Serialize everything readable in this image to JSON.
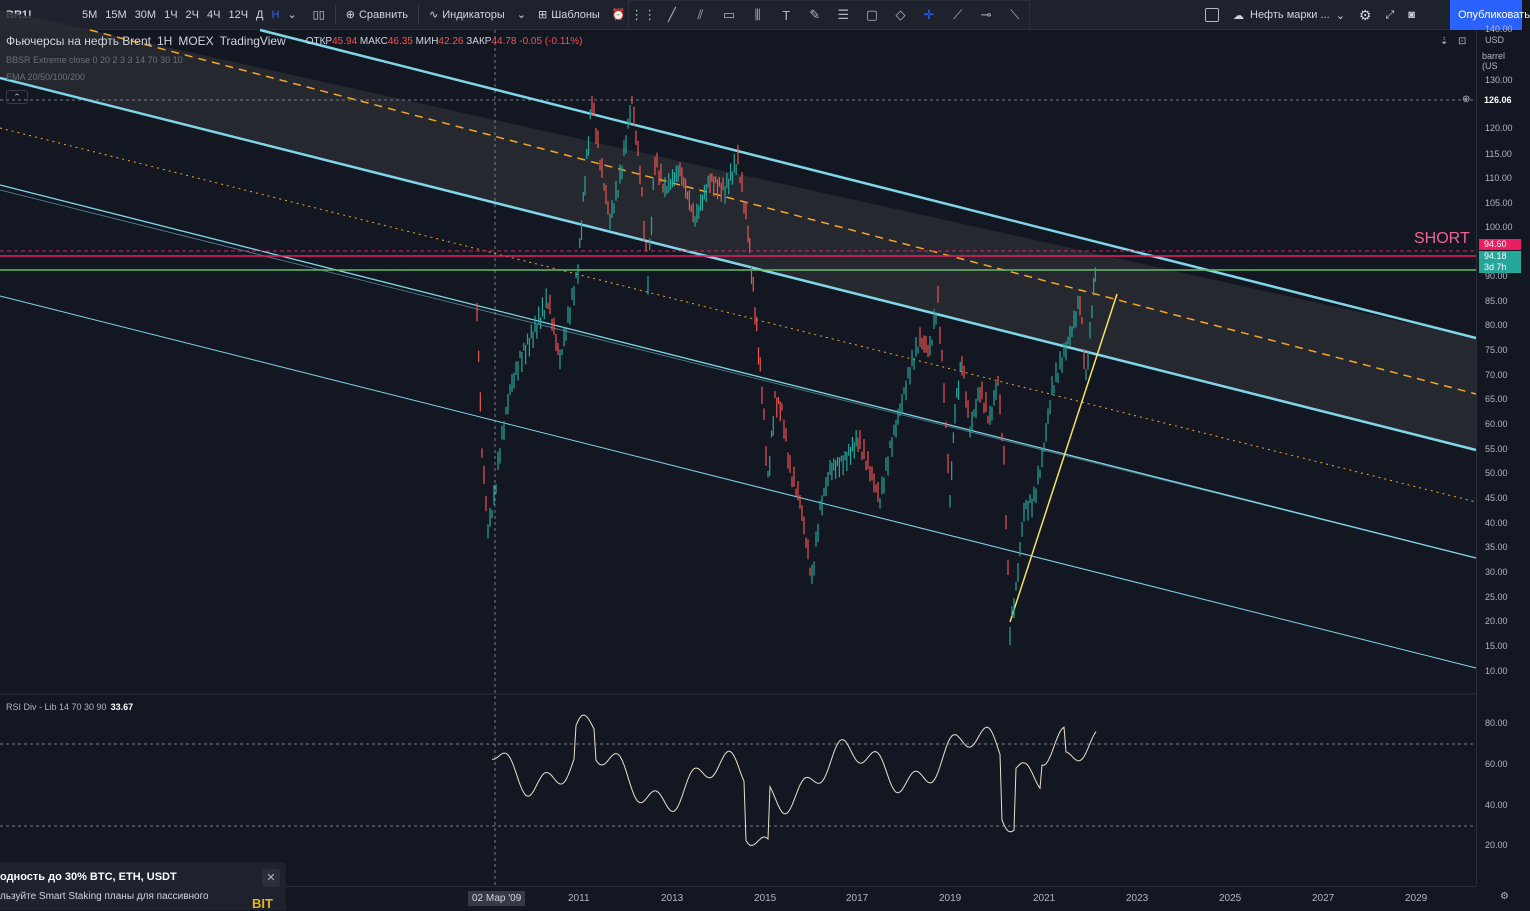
{
  "toolbar": {
    "symbol": "BR1!",
    "timeframes": [
      "5М",
      "15М",
      "30М",
      "1Ч",
      "2Ч",
      "4Ч",
      "12Ч",
      "Д",
      "Н"
    ],
    "active_timeframe": "Н",
    "compare_label": "Сравнить",
    "indicators_label": "Индикаторы",
    "templates_label": "Шаблоны",
    "alerts_label": "Оп",
    "layout_name": "Нефть марки ...",
    "publish_label": "Опубликовать"
  },
  "legend": {
    "title": "Фьючерсы на нефть Brent",
    "interval": "1Н",
    "exchange": "MOEX",
    "source": "TradingView",
    "open_label": "ОТКР",
    "open_value": "45.94",
    "high_label": "МАКС",
    "high_value": "46.35",
    "low_label": "МИН",
    "low_value": "42.26",
    "close_label": "ЗАКР",
    "close_value": "44.78",
    "change": "-0.05 (-0.11%)",
    "indicator1": "BBSR Extreme close 0 20 2 3 3 14 70 30 10",
    "indicator2": "EMA 20/50/100/200"
  },
  "price_scale": {
    "currency": "USD",
    "unit": "barrel (US",
    "ticks": [
      "140.00",
      "130.00",
      "120.00",
      "115.00",
      "110.00",
      "105.00",
      "100.00",
      "90.00",
      "85.00",
      "80.00",
      "75.00",
      "70.00",
      "65.00",
      "60.00",
      "55.00",
      "50.00",
      "45.00",
      "40.00",
      "35.00",
      "30.00",
      "25.00",
      "20.00",
      "15.00",
      "10.00"
    ],
    "crosshair_price": "126.06",
    "short_price": "94.60",
    "current_price": "94.18",
    "countdown": "3d 7h",
    "rsi_ticks": [
      "80.00",
      "60.00",
      "40.00",
      "20.00"
    ]
  },
  "annotations": {
    "short_label": "SHORT"
  },
  "time_axis": {
    "labels": [
      "2011",
      "2013",
      "2015",
      "2017",
      "2019",
      "2021",
      "2023",
      "2025",
      "2027",
      "2029"
    ],
    "crosshair_date": "02 Мар '09"
  },
  "rsi": {
    "label": "RSI Div - Lib 14 70 30 90",
    "value": "33.67"
  },
  "ad": {
    "title": "одность до 30% BTC, ETH, USDT",
    "text": "льзуйте Smart Staking планы для пассивного",
    "brand": "BIT"
  },
  "colors": {
    "background": "#131722",
    "channel_line": "#7fd6e8",
    "dashed_mid": "#f5a623",
    "short_line": "#e91e63",
    "support_line": "#66bb6a",
    "trend_line": "#f7e35a",
    "up_candle": "#26a69a",
    "down_candle": "#ef5350"
  }
}
